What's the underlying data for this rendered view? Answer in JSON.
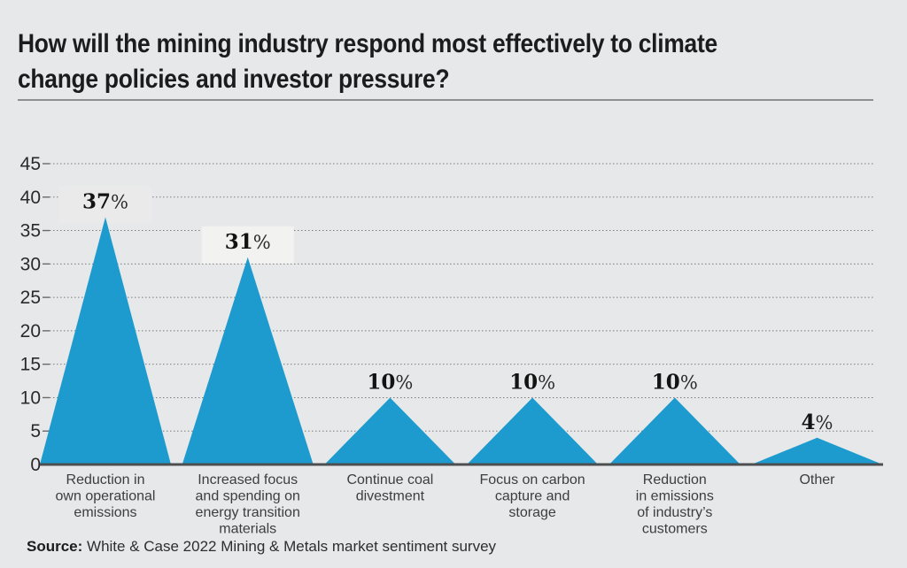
{
  "header": {
    "title_lines": [
      "How will the mining industry respond most effectively to climate",
      "change policies and investor pressure?"
    ]
  },
  "chart_data": {
    "type": "area",
    "subtype": "triangle-peaks",
    "title": "How will the mining industry respond most effectively to climate change policies and investor pressure?",
    "categories": [
      "Reduction in own operational emissions",
      "Increased focus and spending on energy transition materials",
      "Continue coal divestment",
      "Focus on carbon capture and storage",
      "Reduction in emissions of industry's customers",
      "Other"
    ],
    "category_lines": [
      [
        "Reduction in",
        "own operational",
        "emissions"
      ],
      [
        "Increased focus",
        "and spending on",
        "energy transition",
        "materials"
      ],
      [
        "Continue coal",
        "divestment"
      ],
      [
        "Focus on carbon",
        "capture and",
        "storage"
      ],
      [
        "Reduction",
        "in emissions",
        "of industry’s",
        "customers"
      ],
      [
        "Other"
      ]
    ],
    "values": [
      37,
      31,
      10,
      10,
      10,
      4
    ],
    "value_labels": [
      "37%",
      "31%",
      "10%",
      "10%",
      "10%",
      "4%"
    ],
    "unit": "%",
    "ylim": [
      0,
      45
    ],
    "ytick_step": 5,
    "ytick_labels": [
      "0",
      "5",
      "10",
      "15",
      "20",
      "25",
      "30",
      "35",
      "40",
      "45"
    ],
    "grid": "horizontal-dotted",
    "legend": "none",
    "value_label_backgrounds": [
      "#e9eae9",
      "#f2f2f1",
      null,
      null,
      null,
      null
    ]
  },
  "colors": {
    "background": "#e7e8e9",
    "triangle": "#1e9bce",
    "title_text": "#1c1c1e",
    "axis_text": "#2a2a2a",
    "category_text": "#3d3d3d",
    "gridline": "#6a6a6a",
    "baseline": "#4c4e50",
    "divider": "#8d8f91"
  },
  "source": {
    "label": "Source:",
    "text": " White & Case 2022 Mining & Metals market sentiment survey"
  }
}
